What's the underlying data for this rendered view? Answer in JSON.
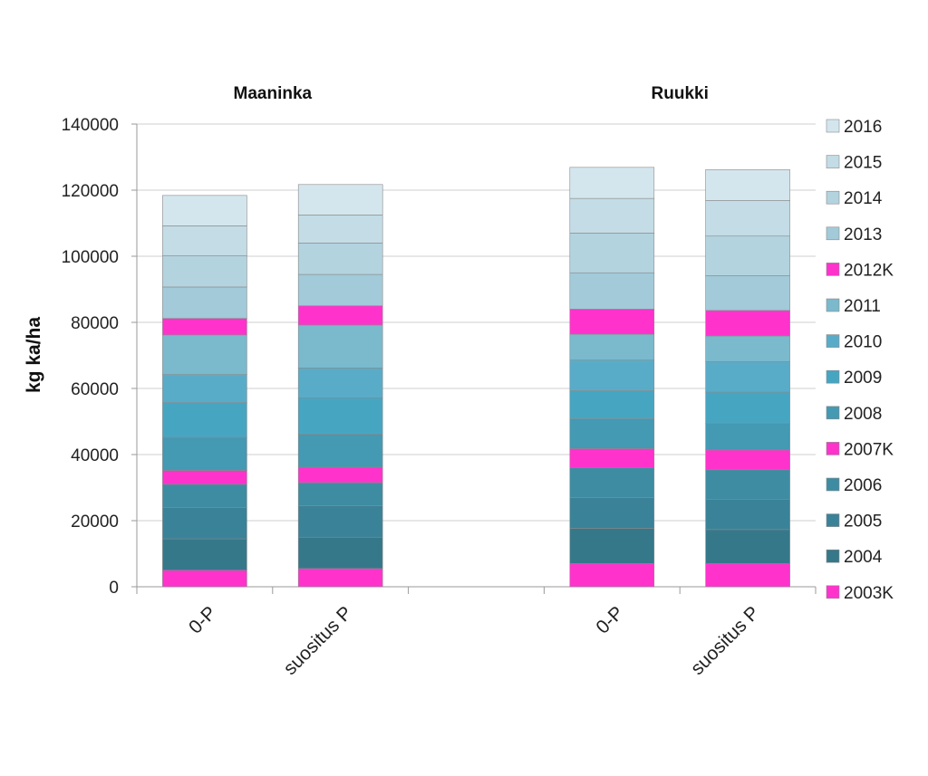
{
  "chart_data": {
    "type": "bar",
    "stacked": true,
    "ylabel": "kg ka/ha",
    "ylim": [
      0,
      140000
    ],
    "yticks": [
      0,
      20000,
      40000,
      60000,
      80000,
      100000,
      120000,
      140000
    ],
    "ytick_labels": [
      "0",
      "20000",
      "40000",
      "60000",
      "80000",
      "100000",
      "120000",
      "140000"
    ],
    "grid": true,
    "legend_position": "right",
    "groups": [
      {
        "title": "Maaninka",
        "categories": [
          "0-P",
          "suositus P"
        ]
      },
      {
        "title": "Ruukki",
        "categories": [
          "0-P",
          "suositus P"
        ]
      }
    ],
    "categories": [
      "0-P",
      "suositus P",
      "",
      "0-P",
      "suositus P"
    ],
    "series": [
      {
        "name": "2003K",
        "color": "#ff33cc",
        "values": [
          5000,
          5500,
          null,
          7000,
          7000
        ]
      },
      {
        "name": "2004",
        "color": "#35788a",
        "values": [
          9500,
          9500,
          null,
          10700,
          10300
        ]
      },
      {
        "name": "2005",
        "color": "#3a8298",
        "values": [
          9500,
          9500,
          null,
          9300,
          9100
        ]
      },
      {
        "name": "2006",
        "color": "#3e8ca2",
        "values": [
          7000,
          7000,
          null,
          9000,
          9000
        ]
      },
      {
        "name": "2007K",
        "color": "#ff33cc",
        "values": [
          4200,
          4700,
          null,
          5800,
          6000
        ]
      },
      {
        "name": "2008",
        "color": "#4499b3",
        "values": [
          10000,
          10000,
          null,
          9000,
          8000
        ]
      },
      {
        "name": "2009",
        "color": "#46a6c2",
        "values": [
          10500,
          11000,
          null,
          8500,
          9500
        ]
      },
      {
        "name": "2010",
        "color": "#59acc8",
        "values": [
          8500,
          9000,
          null,
          9300,
          9200
        ]
      },
      {
        "name": "2011",
        "color": "#7bb9cd",
        "values": [
          12000,
          13000,
          null,
          7800,
          7800
        ]
      },
      {
        "name": "2012K",
        "color": "#ff33cc",
        "values": [
          5000,
          5800,
          null,
          7600,
          7700
        ]
      },
      {
        "name": "2013",
        "color": "#a2cad9",
        "values": [
          9500,
          9500,
          null,
          11000,
          10500
        ]
      },
      {
        "name": "2014",
        "color": "#b3d3df",
        "values": [
          9500,
          9500,
          null,
          12000,
          12000
        ]
      },
      {
        "name": "2015",
        "color": "#c3dce5",
        "values": [
          9000,
          8500,
          null,
          10500,
          10800
        ]
      },
      {
        "name": "2016",
        "color": "#d4e6ed",
        "values": [
          9200,
          9200,
          null,
          9400,
          9300
        ]
      }
    ]
  }
}
